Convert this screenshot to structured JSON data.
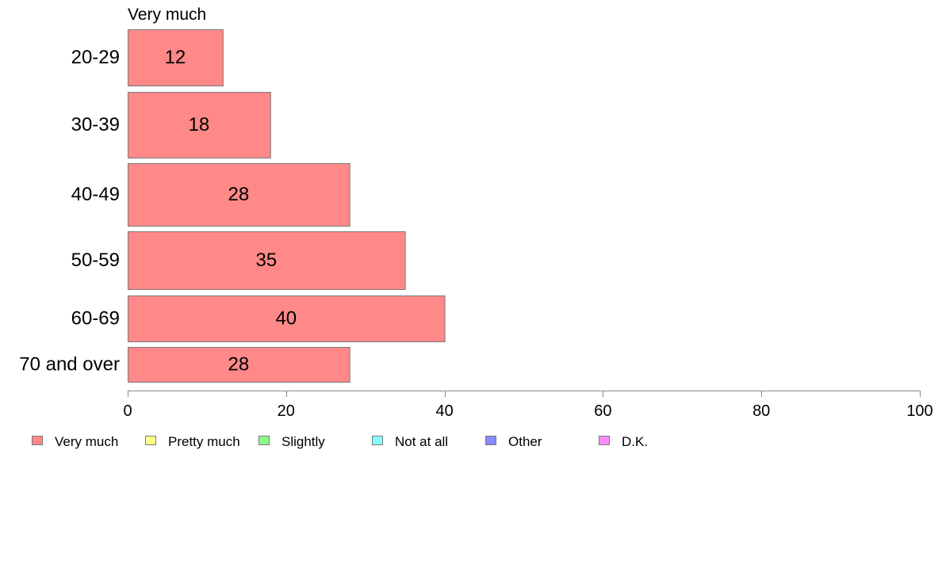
{
  "chart_data": {
    "type": "bar",
    "orientation": "horizontal",
    "title": "Very much",
    "xlabel": "",
    "ylabel": "",
    "categories": [
      "20-29",
      "30-39",
      "40-49",
      "50-59",
      "60-69",
      "70 and over"
    ],
    "series": [
      {
        "name": "Very much",
        "color": "#ff8888",
        "values": [
          12,
          18,
          28,
          35,
          40,
          28
        ]
      }
    ],
    "data_labels": [
      "12",
      "18",
      "28",
      "35",
      "40",
      "28"
    ],
    "xlim": [
      0,
      100
    ],
    "x_ticks": [
      0,
      20,
      40,
      60,
      80,
      100
    ],
    "x_tick_labels": [
      "0",
      "20",
      "40",
      "60",
      "80",
      "100"
    ],
    "grid": false,
    "legend": {
      "placement": "bottom",
      "entries": [
        {
          "label": "Very much",
          "color": "#ff8888"
        },
        {
          "label": "Pretty much",
          "color": "#ffff88"
        },
        {
          "label": "Slightly",
          "color": "#88ff88"
        },
        {
          "label": "Not at all",
          "color": "#88ffff"
        },
        {
          "label": "Other",
          "color": "#8888ff"
        },
        {
          "label": "D.K.",
          "color": "#ff88ff"
        }
      ]
    }
  }
}
